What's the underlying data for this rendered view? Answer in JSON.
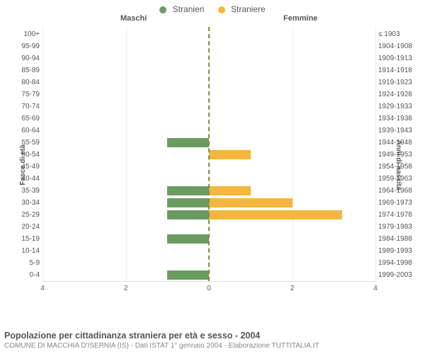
{
  "legend": {
    "items": [
      {
        "label": "Stranieri",
        "color": "#6b9b60"
      },
      {
        "label": "Straniere",
        "color": "#f3b63e"
      }
    ]
  },
  "subheads": {
    "left": "Maschi",
    "right": "Femmine"
  },
  "yAxisLeftTitle": "Fasce di età",
  "yAxisRightTitle": "Anni di nascita",
  "xAxis": {
    "max": 4,
    "ticks": [
      4,
      2,
      0,
      2,
      4
    ],
    "grid_color": "#eeeeee",
    "center_axis_color": "#888844"
  },
  "colors": {
    "male": "#6b9b60",
    "female": "#f3b63e",
    "background": "#ffffff",
    "text": "#555555"
  },
  "fontsize": {
    "legend": 12,
    "subhead": 11,
    "ticks": 10,
    "title": 12.5,
    "subtitle": 10
  },
  "categories": [
    {
      "age": "100+",
      "birth": "≤ 1903",
      "m": 0,
      "f": 0
    },
    {
      "age": "95-99",
      "birth": "1904-1908",
      "m": 0,
      "f": 0
    },
    {
      "age": "90-94",
      "birth": "1909-1913",
      "m": 0,
      "f": 0
    },
    {
      "age": "85-89",
      "birth": "1914-1918",
      "m": 0,
      "f": 0
    },
    {
      "age": "80-84",
      "birth": "1919-1923",
      "m": 0,
      "f": 0
    },
    {
      "age": "75-79",
      "birth": "1924-1928",
      "m": 0,
      "f": 0
    },
    {
      "age": "70-74",
      "birth": "1929-1933",
      "m": 0,
      "f": 0
    },
    {
      "age": "65-69",
      "birth": "1934-1938",
      "m": 0,
      "f": 0
    },
    {
      "age": "60-64",
      "birth": "1939-1943",
      "m": 0,
      "f": 0
    },
    {
      "age": "55-59",
      "birth": "1944-1948",
      "m": 1,
      "f": 0
    },
    {
      "age": "50-54",
      "birth": "1949-1953",
      "m": 0,
      "f": 1
    },
    {
      "age": "45-49",
      "birth": "1954-1958",
      "m": 0,
      "f": 0
    },
    {
      "age": "40-44",
      "birth": "1959-1963",
      "m": 0,
      "f": 0
    },
    {
      "age": "35-39",
      "birth": "1964-1968",
      "m": 1,
      "f": 1
    },
    {
      "age": "30-34",
      "birth": "1969-1973",
      "m": 1,
      "f": 2
    },
    {
      "age": "25-29",
      "birth": "1974-1978",
      "m": 1,
      "f": 3.2
    },
    {
      "age": "20-24",
      "birth": "1979-1983",
      "m": 0,
      "f": 0
    },
    {
      "age": "15-19",
      "birth": "1984-1988",
      "m": 1,
      "f": 0
    },
    {
      "age": "10-14",
      "birth": "1989-1993",
      "m": 0,
      "f": 0
    },
    {
      "age": "5-9",
      "birth": "1994-1998",
      "m": 0,
      "f": 0
    },
    {
      "age": "0-4",
      "birth": "1999-2003",
      "m": 1,
      "f": 0
    }
  ],
  "footer": {
    "title": "Popolazione per cittadinanza straniera per età e sesso - 2004",
    "subtitle": "COMUNE DI MACCHIA D'ISERNIA (IS) - Dati ISTAT 1° gennaio 2004 - Elaborazione TUTTITALIA.IT"
  }
}
